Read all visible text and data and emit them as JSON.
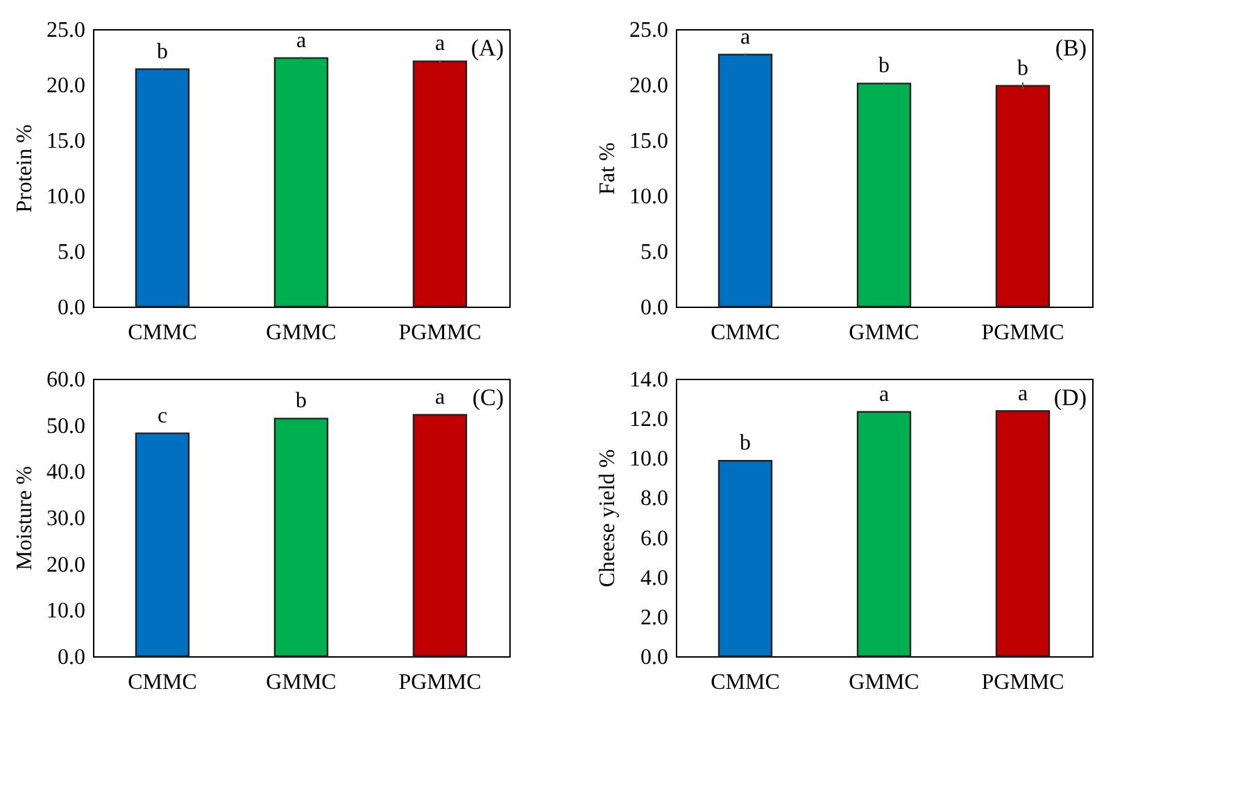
{
  "chart_data": [
    {
      "type": "bar",
      "ylabel": "Protein %",
      "categories": [
        "CMMC",
        "GMMC",
        "PGMMC"
      ],
      "values": [
        21.4,
        22.4,
        22.1
      ],
      "errors": [
        0.1,
        0.1,
        0.1
      ],
      "colors": [
        "#0070c0",
        "#00b050",
        "#c00000"
      ],
      "ylim": [
        0,
        25
      ],
      "yticks": [
        {
          "value": 0,
          "label": "0.0"
        },
        {
          "value": 5,
          "label": "5.0"
        },
        {
          "value": 10,
          "label": "10.0"
        },
        {
          "value": 15,
          "label": "15.0"
        },
        {
          "value": 20,
          "label": "20.0"
        },
        {
          "value": 25,
          "label": "25.0"
        }
      ],
      "grid": false,
      "annotations": [
        {
          "text": "b",
          "x": "CMMC",
          "y": 21.4
        },
        {
          "text": "a",
          "x": "GMMC",
          "y": 22.4
        },
        {
          "text": "a",
          "x": "PGMMC",
          "y": 22.1
        },
        "(A)"
      ]
    },
    {
      "type": "bar",
      "ylabel": "Fat %",
      "categories": [
        "CMMC",
        "GMMC",
        "PGMMC"
      ],
      "values": [
        22.7,
        20.1,
        19.9
      ],
      "errors": [
        0.1,
        0.1,
        0.3
      ],
      "colors": [
        "#0070c0",
        "#00b050",
        "#c00000"
      ],
      "ylim": [
        0,
        25
      ],
      "yticks": [
        {
          "value": 0,
          "label": "0.0"
        },
        {
          "value": 5,
          "label": "5.0"
        },
        {
          "value": 10,
          "label": "10.0"
        },
        {
          "value": 15,
          "label": "15.0"
        },
        {
          "value": 20,
          "label": "20.0"
        },
        {
          "value": 25,
          "label": "25.0"
        }
      ],
      "grid": false,
      "annotations": [
        {
          "text": "a",
          "x": "CMMC",
          "y": 22.7
        },
        {
          "text": "b",
          "x": "GMMC",
          "y": 20.1
        },
        {
          "text": "b",
          "x": "PGMMC",
          "y": 19.9
        },
        "(B)"
      ]
    },
    {
      "type": "bar",
      "ylabel": "Moisture %",
      "categories": [
        "CMMC",
        "GMMC",
        "PGMMC"
      ],
      "values": [
        48.2,
        51.4,
        52.2
      ],
      "colors": [
        "#0070c0",
        "#00b050",
        "#c00000"
      ],
      "ylim": [
        0,
        60
      ],
      "yticks": [
        {
          "value": 0,
          "label": "0.0"
        },
        {
          "value": 10,
          "label": "10.0"
        },
        {
          "value": 20,
          "label": "20.0"
        },
        {
          "value": 30,
          "label": "30.0"
        },
        {
          "value": 40,
          "label": "40.0"
        },
        {
          "value": 50,
          "label": "50.0"
        },
        {
          "value": 60,
          "label": "60.0"
        }
      ],
      "grid": false,
      "annotations": [
        {
          "text": "c",
          "x": "CMMC",
          "y": 48.2
        },
        {
          "text": "b",
          "x": "GMMC",
          "y": 51.4
        },
        {
          "text": "a",
          "x": "PGMMC",
          "y": 52.2
        },
        "(C)"
      ]
    },
    {
      "type": "bar",
      "ylabel": "Cheese yield %",
      "categories": [
        "CMMC",
        "GMMC",
        "PGMMC"
      ],
      "values": [
        9.86,
        12.33,
        12.37
      ],
      "colors": [
        "#0070c0",
        "#00b050",
        "#c00000"
      ],
      "ylim": [
        0,
        14
      ],
      "yticks": [
        {
          "value": 0,
          "label": "0.0"
        },
        {
          "value": 2,
          "label": "2.0"
        },
        {
          "value": 4,
          "label": "4.0"
        },
        {
          "value": 6,
          "label": "6.0"
        },
        {
          "value": 8,
          "label": "8.0"
        },
        {
          "value": 10,
          "label": "10.0"
        },
        {
          "value": 12,
          "label": "12.0"
        },
        {
          "value": 14,
          "label": "14.0"
        }
      ],
      "grid": false,
      "annotations": [
        {
          "text": "b",
          "x": "CMMC",
          "y": 9.86
        },
        {
          "text": "a",
          "x": "GMMC",
          "y": 12.33
        },
        {
          "text": "a",
          "x": "PGMMC",
          "y": 12.37
        },
        "(D)"
      ]
    }
  ]
}
